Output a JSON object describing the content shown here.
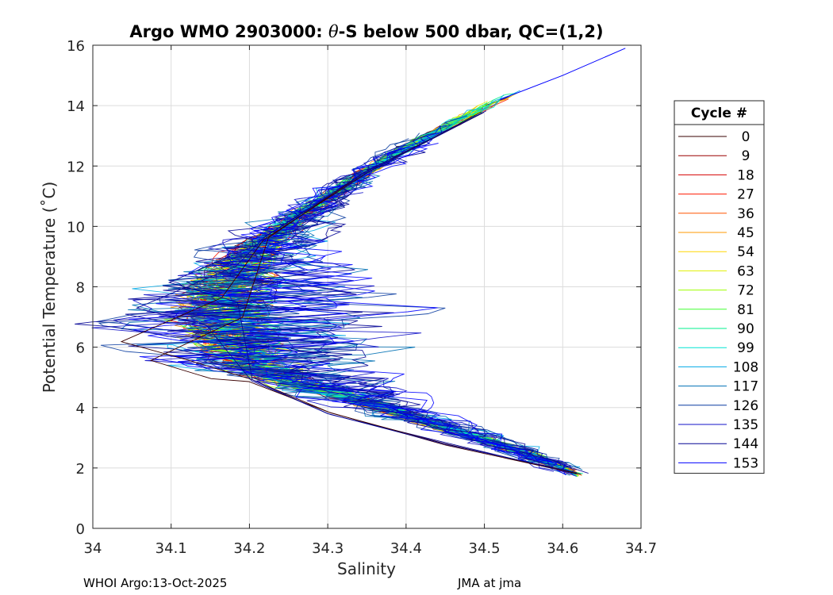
{
  "chart_data": {
    "type": "line",
    "title": "Argo WMO 2903000: θ-S below 500 dbar,  QC=(1,2)",
    "title_parts": {
      "prefix": "Argo WMO 2903000: ",
      "theta": "θ",
      "suffix": "-S below 500 dbar,  QC=(1,2)"
    },
    "xlabel": "Salinity",
    "ylabel": "Potential Temperature (˚C)",
    "xlim": [
      34,
      34.7
    ],
    "ylim": [
      0,
      16
    ],
    "xticks": [
      34,
      34.1,
      34.2,
      34.3,
      34.4,
      34.5,
      34.6,
      34.7
    ],
    "xtick_labels": [
      "34",
      "34.1",
      "34.2",
      "34.3",
      "34.4",
      "34.5",
      "34.6",
      "34.7"
    ],
    "yticks": [
      0,
      2,
      4,
      6,
      8,
      10,
      12,
      14,
      16
    ],
    "ytick_labels": [
      "0",
      "2",
      "4",
      "6",
      "8",
      "10",
      "12",
      "14",
      "16"
    ],
    "grid": true,
    "legend_title": "Cycle #",
    "legend_placement": "outside-right",
    "legend": [
      {
        "label": "0",
        "color": "#3a0000"
      },
      {
        "label": "9",
        "color": "#9a0000"
      },
      {
        "label": "18",
        "color": "#d40000"
      },
      {
        "label": "27",
        "color": "#ff1a00"
      },
      {
        "label": "36",
        "color": "#ff5500"
      },
      {
        "label": "45",
        "color": "#ff9900"
      },
      {
        "label": "54",
        "color": "#ffd500"
      },
      {
        "label": "63",
        "color": "#e1f000"
      },
      {
        "label": "72",
        "color": "#9eff00"
      },
      {
        "label": "81",
        "color": "#40ff30"
      },
      {
        "label": "90",
        "color": "#00f08c"
      },
      {
        "label": "99",
        "color": "#00e6d2"
      },
      {
        "label": "108",
        "color": "#00a8e6"
      },
      {
        "label": "117",
        "color": "#0070b4"
      },
      {
        "label": "126",
        "color": "#0a3ca0"
      },
      {
        "label": "135",
        "color": "#1010c8"
      },
      {
        "label": "144",
        "color": "#050596"
      },
      {
        "label": "153",
        "color": "#0000ff"
      }
    ],
    "envelope_curve": {
      "description": "approximate mean θ-S relation shared by all cycles",
      "points": [
        [
          34.68,
          15.9
        ],
        [
          34.6,
          15.0
        ],
        [
          34.52,
          14.2
        ],
        [
          34.45,
          13.3
        ],
        [
          34.38,
          12.3
        ],
        [
          34.32,
          11.3
        ],
        [
          34.26,
          10.3
        ],
        [
          34.22,
          9.5
        ],
        [
          34.19,
          8.7
        ],
        [
          34.175,
          8.0
        ],
        [
          34.17,
          7.3
        ],
        [
          34.175,
          6.6
        ],
        [
          34.19,
          6.0
        ],
        [
          34.21,
          5.4
        ],
        [
          34.25,
          4.9
        ],
        [
          34.3,
          4.5
        ],
        [
          34.36,
          4.1
        ],
        [
          34.42,
          3.6
        ],
        [
          34.48,
          3.1
        ],
        [
          34.54,
          2.6
        ],
        [
          34.58,
          2.2
        ],
        [
          34.62,
          1.8
        ]
      ]
    }
  },
  "footer": {
    "left": "WHOI Argo:13-Oct-2025",
    "right": "JMA at jma"
  }
}
